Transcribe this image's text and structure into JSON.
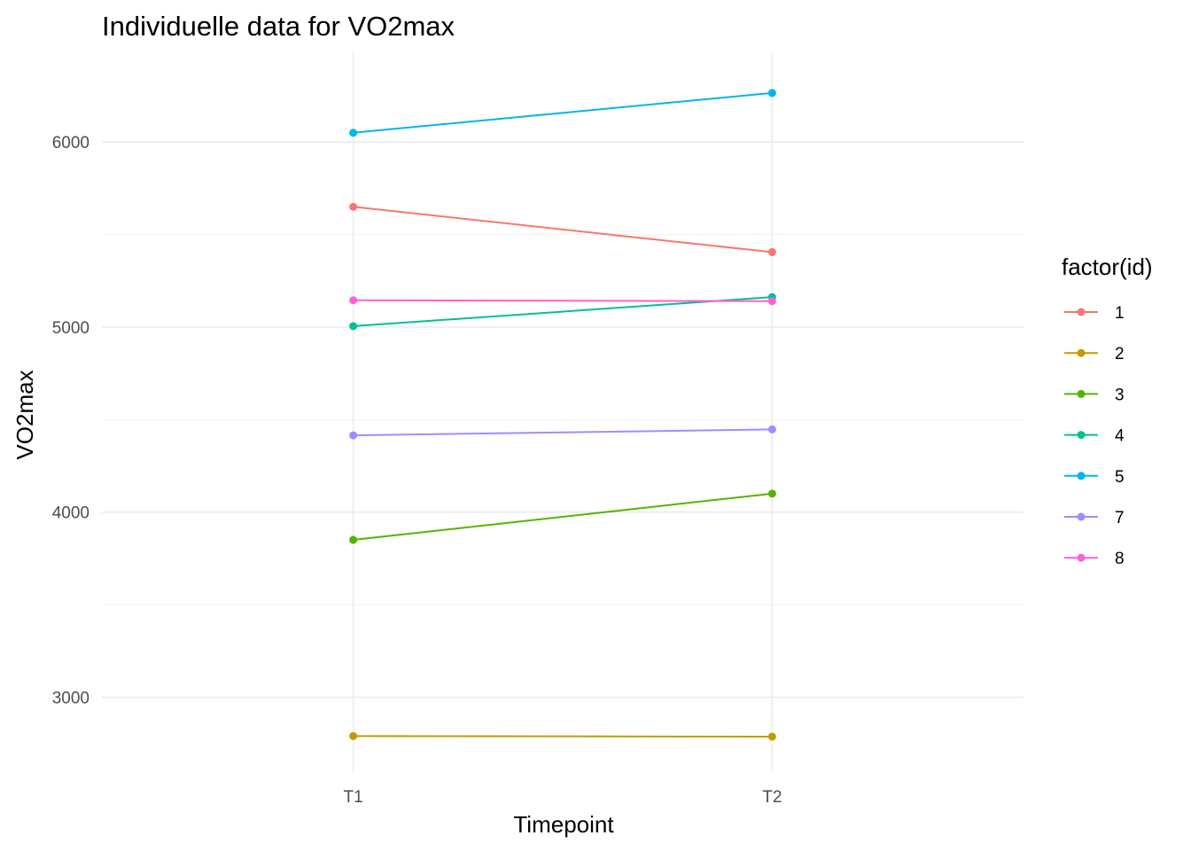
{
  "chart_data": {
    "type": "line",
    "title": "Individuelle data for VO2max",
    "xlabel": "Timepoint",
    "ylabel": "VO2max",
    "categories": [
      "T1",
      "T2"
    ],
    "ylim": [
      2600,
      6480
    ],
    "yticks": [
      3000,
      4000,
      5000,
      6000
    ],
    "yminor": [
      3500,
      4500,
      5500
    ],
    "grid": true,
    "legend": {
      "title": "factor(id)",
      "position": "right"
    },
    "series": [
      {
        "name": "1",
        "color": "#F8766D",
        "values": [
          5650,
          5405
        ]
      },
      {
        "name": "2",
        "color": "#C49A00",
        "values": [
          2790,
          2787
        ]
      },
      {
        "name": "3",
        "color": "#53B400",
        "values": [
          3850,
          4100
        ]
      },
      {
        "name": "4",
        "color": "#00C094",
        "values": [
          5005,
          5162
        ]
      },
      {
        "name": "5",
        "color": "#00B6EB",
        "values": [
          6050,
          6265
        ]
      },
      {
        "name": "7",
        "color": "#A58AFF",
        "values": [
          4415,
          4447
        ]
      },
      {
        "name": "8",
        "color": "#FB61D7",
        "values": [
          5145,
          5140
        ]
      }
    ]
  }
}
